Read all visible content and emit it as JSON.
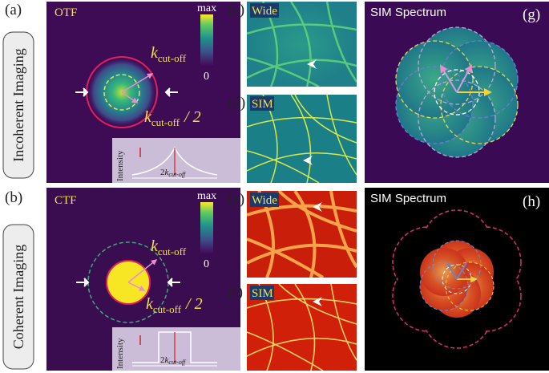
{
  "rows": [
    {
      "label": "(a)",
      "side_label": "Incoherent Imaging",
      "panel_title": "OTF",
      "colorbar": {
        "max": "max",
        "min": "0"
      },
      "k_label": {
        "k": "k",
        "sub": "cut-off"
      },
      "k_half_label": {
        "k": "k",
        "sub": "cut-off",
        "suffix": "/ 2"
      },
      "inset": {
        "y_label": "Intensity",
        "width_label": {
          "prefix": "2",
          "k": "k",
          "sub": "cut-off"
        }
      }
    },
    {
      "label": "(b)",
      "side_label": "Coherent Imaging",
      "panel_title": "CTF",
      "colorbar": {
        "max": "max",
        "min": "0"
      },
      "k_label": {
        "k": "k",
        "sub": "cut-off"
      },
      "k_half_label": {
        "k": "k",
        "sub": "cut-off",
        "suffix": "/ 2"
      },
      "inset": {
        "y_label": "Intensity",
        "width_label": {
          "prefix": "2",
          "k": "k",
          "sub": "cut-off"
        }
      }
    }
  ],
  "images": [
    {
      "label": "(c)",
      "title": "Wide"
    },
    {
      "label": "(d)",
      "title": "SIM"
    },
    {
      "label": "(e)",
      "title": "Wide"
    },
    {
      "label": "(f)",
      "title": "SIM"
    }
  ],
  "spectra": [
    {
      "label": "(g)",
      "title": "SIM Spectrum"
    },
    {
      "label": "(h)",
      "title": "SIM Spectrum"
    }
  ]
}
